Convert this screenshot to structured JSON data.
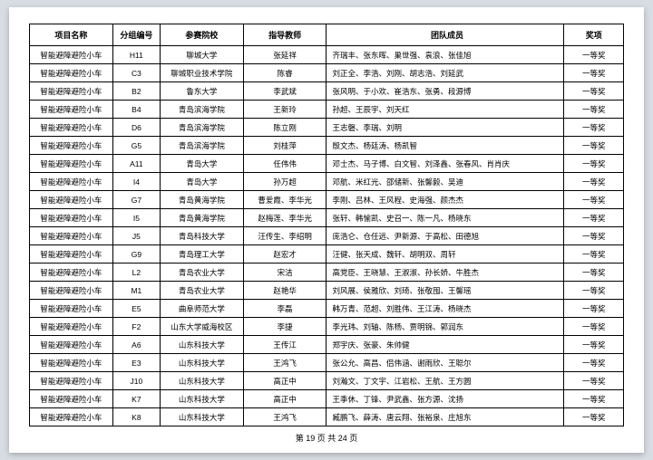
{
  "headers": {
    "name": "项目名称",
    "group": "分组编号",
    "school": "参赛院校",
    "teacher": "指导教师",
    "team": "团队成员",
    "award": "奖项"
  },
  "rows": [
    {
      "name": "智能避障避险小车",
      "group": "H11",
      "school": "聊城大学",
      "teacher": "张延祥",
      "team": "齐瑞丰、张东晖、巢世强、袁浪、张佳旭",
      "award": "一等奖"
    },
    {
      "name": "智能避障避险小车",
      "group": "C3",
      "school": "聊城职业技术学院",
      "teacher": "陈睿",
      "team": "刘正全、李浩、刘刚、胡志浩、刘延武",
      "award": "一等奖"
    },
    {
      "name": "智能避障避险小车",
      "group": "B2",
      "school": "鲁东大学",
      "teacher": "李武斌",
      "team": "张风明、于小欢、崔浩东、张勇、段源博",
      "award": "一等奖"
    },
    {
      "name": "智能避障避险小车",
      "group": "B4",
      "school": "青岛滨海学院",
      "teacher": "王新玲",
      "team": "孙超、王辰宇、刘天红",
      "award": "一等奖"
    },
    {
      "name": "智能避障避险小车",
      "group": "D6",
      "school": "青岛滨海学院",
      "teacher": "陈立刚",
      "team": "王志磐、李瑞、刘明",
      "award": "一等奖"
    },
    {
      "name": "智能避障避险小车",
      "group": "G5",
      "school": "青岛滨海学院",
      "teacher": "刘桂萍",
      "team": "殷文杰、杨廷涛、杨凯智",
      "award": "一等奖"
    },
    {
      "name": "智能避障避险小车",
      "group": "A11",
      "school": "青岛大学",
      "teacher": "任伟伟",
      "team": "邓士杰、马子博、白文智、刘泽鑫、张春风、肖肖庆",
      "award": "一等奖"
    },
    {
      "name": "智能避障避险小车",
      "group": "I4",
      "school": "青岛大学",
      "teacher": "孙万超",
      "team": "邓航、米红光、邵储新、张馨毅、吴迪",
      "award": "一等奖"
    },
    {
      "name": "智能避障避险小车",
      "group": "G7",
      "school": "青岛黄海学院",
      "teacher": "曹爱霞、李华光",
      "team": "李刚、吕林、王风程、史海强、颜杰杰",
      "award": "一等奖"
    },
    {
      "name": "智能避障避险小车",
      "group": "I5",
      "school": "青岛黄海学院",
      "teacher": "赵梅莲、李华光",
      "team": "张轩、韩愉凯、史召一、陈一凡、杨晓东",
      "award": "一等奖"
    },
    {
      "name": "智能避障避险小车",
      "group": "J5",
      "school": "青岛科技大学",
      "teacher": "汪传生、李绍明",
      "team": "庞浩仑、仓任远、尹新源、于高松、田德旭",
      "award": "一等奖"
    },
    {
      "name": "智能避障避险小车",
      "group": "G9",
      "school": "青岛理工大学",
      "teacher": "赵宏才",
      "team": "汪健、张天成、魏轩、胡明双、周轩",
      "award": "一等奖"
    },
    {
      "name": "智能避障避险小车",
      "group": "L2",
      "school": "青岛农业大学",
      "teacher": "宋洁",
      "team": "高党臣、王晓慧、王淑淑、孙长娇、牛胜杰",
      "award": "一等奖"
    },
    {
      "name": "智能避障避险小车",
      "group": "M1",
      "school": "青岛农业大学",
      "teacher": "赵艳华",
      "team": "刘风展、侯雅欣、刘琦、张敬囤、王馨瑶",
      "award": "一等奖"
    },
    {
      "name": "智能避障避险小车",
      "group": "E5",
      "school": "曲阜师范大学",
      "teacher": "李磊",
      "team": "韩万青、范超、刘胜伟、王江涛、杨晓杰",
      "award": "一等奖"
    },
    {
      "name": "智能避障避险小车",
      "group": "F2",
      "school": "山东大学威海校区",
      "teacher": "李捷",
      "team": "李光玮、刘轴、陈杨、贾明锦、郭润东",
      "award": "一等奖"
    },
    {
      "name": "智能避障避险小车",
      "group": "A6",
      "school": "山东科技大学",
      "teacher": "王传江",
      "team": "郑宇庆、张豪、朱帅健",
      "award": "一等奖"
    },
    {
      "name": "智能避障避险小车",
      "group": "E3",
      "school": "山东科技大学",
      "teacher": "王鸿飞",
      "team": "张公允、高昌、侣伟涵、谢雨欣、王聪尔",
      "award": "一等奖"
    },
    {
      "name": "智能避障避险小车",
      "group": "J10",
      "school": "山东科技大学",
      "teacher": "高正中",
      "team": "刘瀚文、丁文宇、江岩松、王航、王方圆",
      "award": "一等奖"
    },
    {
      "name": "智能避障避险小车",
      "group": "K7",
      "school": "山东科技大学",
      "teacher": "高正中",
      "team": "王季休、丁锋、尹武鑫、张方源、沈扬",
      "award": "一等奖"
    },
    {
      "name": "智能避障避险小车",
      "group": "K8",
      "school": "山东科技大学",
      "teacher": "王鸿飞",
      "team": "臧鹏飞、薛涛、唐云翔、张裕泉、庄旭东",
      "award": "一等奖"
    }
  ],
  "footer": {
    "text": "第 19 页 共 24 页"
  }
}
